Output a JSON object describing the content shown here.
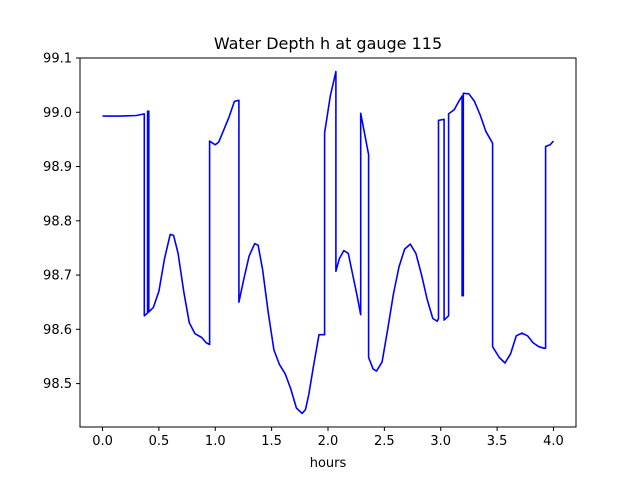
{
  "chart_data": {
    "type": "line",
    "title": "Water Depth h at gauge 115",
    "xlabel": "hours",
    "ylabel": "",
    "xlim": [
      -0.2,
      4.2
    ],
    "ylim": [
      98.42,
      99.1
    ],
    "xticks": [
      0.0,
      0.5,
      1.0,
      1.5,
      2.0,
      2.5,
      3.0,
      3.5,
      4.0
    ],
    "xtick_labels": [
      "0.0",
      "0.5",
      "1.0",
      "1.5",
      "2.0",
      "2.5",
      "3.0",
      "3.5",
      "4.0"
    ],
    "yticks": [
      98.5,
      98.6,
      98.7,
      98.8,
      98.9,
      99.0,
      99.1
    ],
    "ytick_labels": [
      "98.5",
      "98.6",
      "98.7",
      "98.8",
      "98.9",
      "99.0",
      "99.1"
    ],
    "grid": false,
    "series": [
      {
        "color": "#0000ff",
        "x": [
          0.0,
          0.15,
          0.3,
          0.37,
          0.37,
          0.4,
          0.4,
          0.41,
          0.41,
          0.45,
          0.5,
          0.55,
          0.6,
          0.63,
          0.67,
          0.72,
          0.77,
          0.82,
          0.88,
          0.92,
          0.95,
          0.95,
          0.97,
          1.0,
          1.03,
          1.07,
          1.12,
          1.17,
          1.21,
          1.21,
          1.25,
          1.3,
          1.35,
          1.38,
          1.42,
          1.47,
          1.52,
          1.57,
          1.62,
          1.67,
          1.72,
          1.77,
          1.8,
          1.83,
          1.87,
          1.92,
          1.97,
          1.97,
          2.02,
          2.07,
          2.07,
          2.1,
          2.14,
          2.18,
          2.22,
          2.26,
          2.29,
          2.29,
          2.33,
          2.36,
          2.36,
          2.4,
          2.43,
          2.48,
          2.53,
          2.58,
          2.63,
          2.68,
          2.73,
          2.78,
          2.83,
          2.88,
          2.93,
          2.97,
          2.98,
          2.98,
          3.03,
          3.03,
          3.07,
          3.07,
          3.12,
          3.16,
          3.19,
          3.19,
          3.2,
          3.2,
          3.25,
          3.3,
          3.35,
          3.4,
          3.46,
          3.46,
          3.52,
          3.57,
          3.62,
          3.67,
          3.72,
          3.77,
          3.82,
          3.87,
          3.92,
          3.93,
          3.93,
          3.97,
          4.0
        ],
        "y": [
          98.993,
          98.993,
          98.994,
          98.997,
          98.625,
          98.63,
          99.002,
          99.002,
          98.632,
          98.64,
          98.67,
          98.73,
          98.775,
          98.773,
          98.74,
          98.67,
          98.612,
          98.592,
          98.585,
          98.575,
          98.572,
          98.947,
          98.944,
          98.94,
          98.945,
          98.965,
          98.99,
          99.02,
          99.022,
          98.65,
          98.69,
          98.735,
          98.758,
          98.755,
          98.71,
          98.63,
          98.562,
          98.535,
          98.518,
          98.49,
          98.455,
          98.445,
          98.452,
          98.48,
          98.53,
          98.59,
          98.59,
          98.962,
          99.03,
          99.075,
          98.707,
          98.73,
          98.745,
          98.74,
          98.7,
          98.66,
          98.627,
          98.998,
          98.955,
          98.922,
          98.548,
          98.527,
          98.523,
          98.54,
          98.6,
          98.665,
          98.715,
          98.748,
          98.757,
          98.74,
          98.7,
          98.655,
          98.62,
          98.615,
          98.62,
          98.985,
          98.987,
          98.617,
          98.625,
          98.997,
          99.005,
          99.02,
          99.03,
          98.662,
          98.662,
          99.035,
          99.034,
          99.02,
          98.995,
          98.965,
          98.943,
          98.568,
          98.548,
          98.538,
          98.555,
          98.588,
          98.593,
          98.588,
          98.575,
          98.568,
          98.565,
          98.565,
          98.937,
          98.94,
          98.947
        ]
      }
    ]
  }
}
